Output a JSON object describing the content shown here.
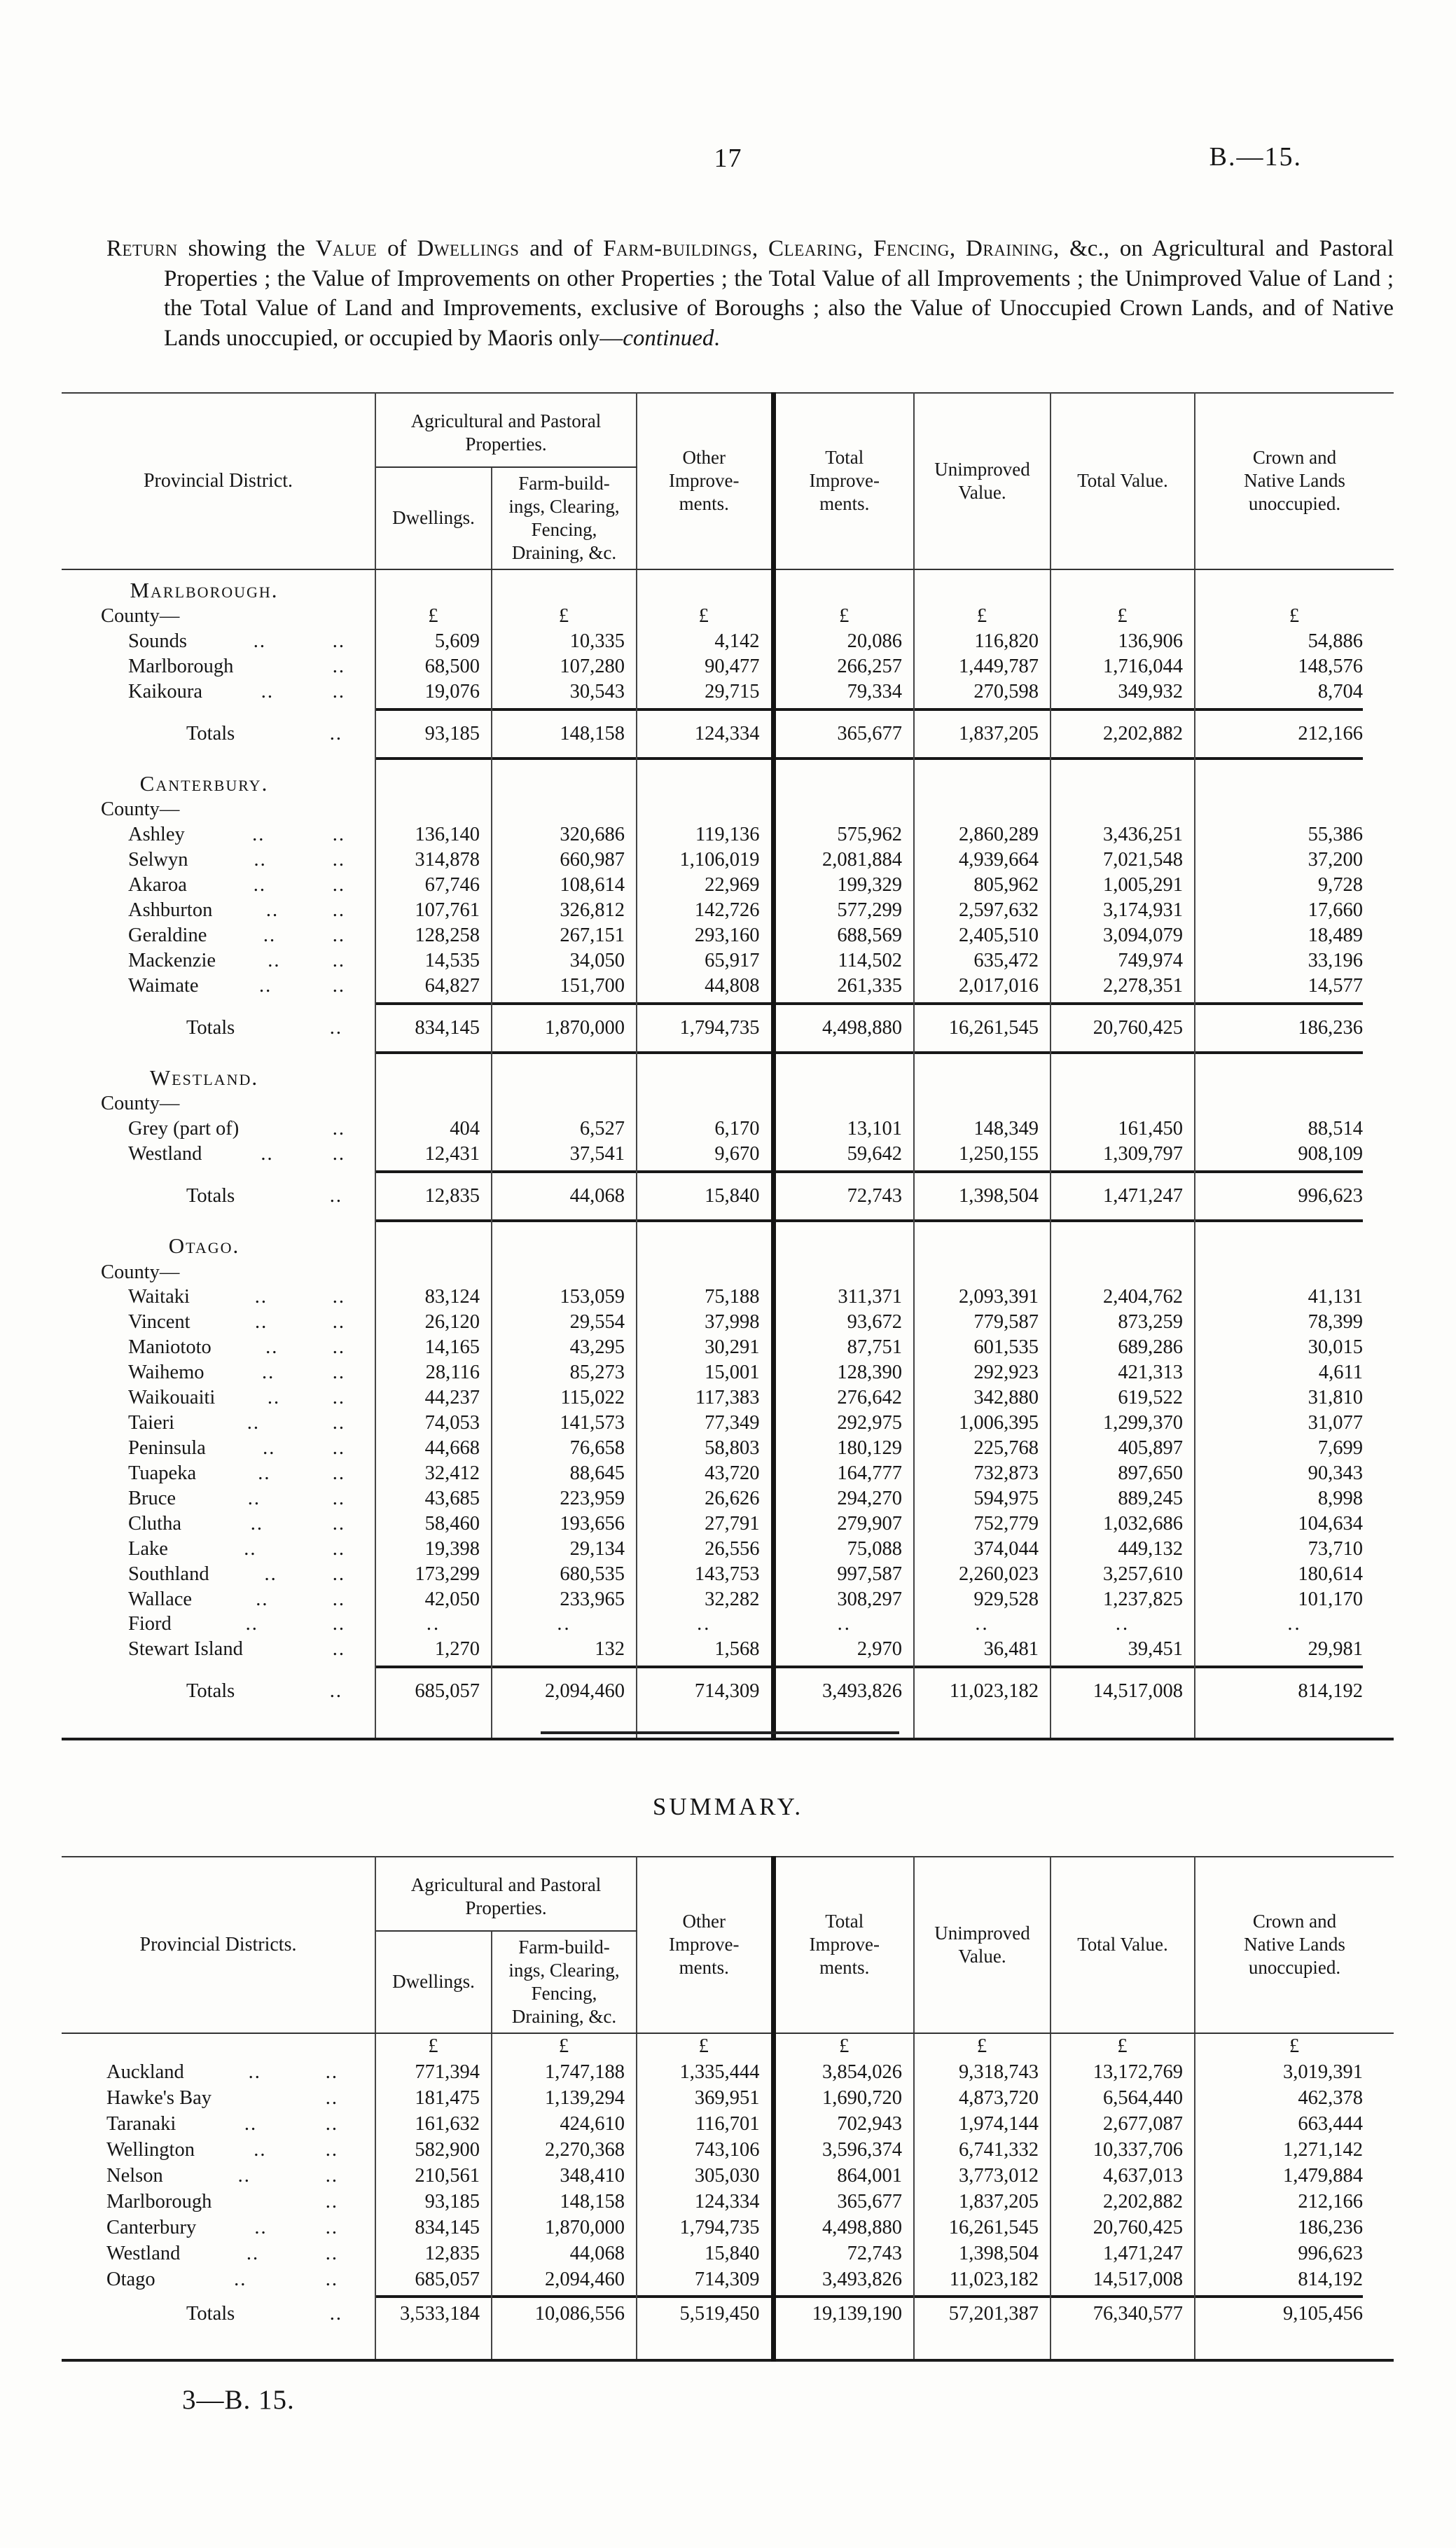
{
  "page": {
    "page_number": "17",
    "doc_code": "B.—15.",
    "summary_title": "SUMMARY.",
    "footer_signature": "3—B. 15."
  },
  "intro": {
    "segments": [
      {
        "text": "Return",
        "style": "smallcaps"
      },
      {
        "text": " showing the ",
        "style": "normal"
      },
      {
        "text": "Value",
        "style": "smallcaps"
      },
      {
        "text": " of ",
        "style": "normal"
      },
      {
        "text": "Dwellings",
        "style": "smallcaps"
      },
      {
        "text": " and of ",
        "style": "normal"
      },
      {
        "text": "Farm-buildings",
        "style": "smallcaps"
      },
      {
        "text": ", ",
        "style": "normal"
      },
      {
        "text": "Clearing",
        "style": "smallcaps"
      },
      {
        "text": ", ",
        "style": "normal"
      },
      {
        "text": "Fencing",
        "style": "smallcaps"
      },
      {
        "text": ", ",
        "style": "normal"
      },
      {
        "text": "Draining",
        "style": "smallcaps"
      },
      {
        "text": ", &c., on Agricultural and Pastoral Properties ; the Value of Improvements on other Properties ; the Total Value of all Improvements ; the Unimproved Value of Land ; the Total Value of Land and Improvements, exclusive of Boroughs ; also the Value of Unoccupied Crown Lands, and of Native Lands unoccupied, or occupied by Maoris only—",
        "style": "normal"
      },
      {
        "text": "continued",
        "style": "italic"
      },
      {
        "text": ".",
        "style": "normal"
      }
    ]
  },
  "columns": {
    "district_main": "Provincial District.",
    "district_summary": "Provincial Districts.",
    "group": "Agricultural and Pastoral\nProperties.",
    "dwellings": "Dwellings.",
    "farm_buildings": "Farm-build-\nings, Clearing,\nFencing,\nDraining, &c.",
    "other_improvements": "Other\nImprove-\nments.",
    "total_improvements": "Total\nImprove-\nments.",
    "unimproved_value": "Unimproved\nValue.",
    "total_value": "Total Value.",
    "crown_native": "Crown and\nNative Lands\nunoccupied.",
    "currency": "£",
    "empty_marker": "..",
    "county_label": "County—",
    "totals_label": "Totals"
  },
  "main_table": {
    "sections": [
      {
        "name": "Marlborough.",
        "show_currency_row": true,
        "rows": [
          {
            "label": "Sounds",
            "dots": 2,
            "values": [
              "5,609",
              "10,335",
              "4,142",
              "20,086",
              "116,820",
              "136,906",
              "54,886"
            ]
          },
          {
            "label": "Marlborough",
            "dots": 1,
            "values": [
              "68,500",
              "107,280",
              "90,477",
              "266,257",
              "1,449,787",
              "1,716,044",
              "148,576"
            ]
          },
          {
            "label": "Kaikoura",
            "dots": 2,
            "values": [
              "19,076",
              "30,543",
              "29,715",
              "79,334",
              "270,598",
              "349,932",
              "8,704"
            ]
          }
        ],
        "totals": [
          "93,185",
          "148,158",
          "124,334",
          "365,677",
          "1,837,205",
          "2,202,882",
          "212,166"
        ],
        "bottom_rule": "single"
      },
      {
        "name": "Canterbury.",
        "show_currency_row": false,
        "rows": [
          {
            "label": "Ashley",
            "dots": 2,
            "values": [
              "136,140",
              "320,686",
              "119,136",
              "575,962",
              "2,860,289",
              "3,436,251",
              "55,386"
            ]
          },
          {
            "label": "Selwyn",
            "dots": 2,
            "values": [
              "314,878",
              "660,987",
              "1,106,019",
              "2,081,884",
              "4,939,664",
              "7,021,548",
              "37,200"
            ]
          },
          {
            "label": "Akaroa",
            "dots": 2,
            "values": [
              "67,746",
              "108,614",
              "22,969",
              "199,329",
              "805,962",
              "1,005,291",
              "9,728"
            ]
          },
          {
            "label": "Ashburton",
            "dots": 2,
            "values": [
              "107,761",
              "326,812",
              "142,726",
              "577,299",
              "2,597,632",
              "3,174,931",
              "17,660"
            ]
          },
          {
            "label": "Geraldine",
            "dots": 2,
            "values": [
              "128,258",
              "267,151",
              "293,160",
              "688,569",
              "2,405,510",
              "3,094,079",
              "18,489"
            ]
          },
          {
            "label": "Mackenzie",
            "dots": 2,
            "values": [
              "14,535",
              "34,050",
              "65,917",
              "114,502",
              "635,472",
              "749,974",
              "33,196"
            ]
          },
          {
            "label": "Waimate",
            "dots": 2,
            "values": [
              "64,827",
              "151,700",
              "44,808",
              "261,335",
              "2,017,016",
              "2,278,351",
              "14,577"
            ]
          }
        ],
        "totals": [
          "834,145",
          "1,870,000",
          "1,794,735",
          "4,498,880",
          "16,261,545",
          "20,760,425",
          "186,236"
        ],
        "bottom_rule": "single"
      },
      {
        "name": "Westland.",
        "show_currency_row": false,
        "rows": [
          {
            "label": "Grey (part of)",
            "dots": 1,
            "values": [
              "404",
              "6,527",
              "6,170",
              "13,101",
              "148,349",
              "161,450",
              "88,514"
            ]
          },
          {
            "label": "Westland",
            "dots": 2,
            "values": [
              "12,431",
              "37,541",
              "9,670",
              "59,642",
              "1,250,155",
              "1,309,797",
              "908,109"
            ]
          }
        ],
        "totals": [
          "12,835",
          "44,068",
          "15,840",
          "72,743",
          "1,398,504",
          "1,471,247",
          "996,623"
        ],
        "bottom_rule": "single"
      },
      {
        "name": "Otago.",
        "show_currency_row": false,
        "rows": [
          {
            "label": "Waitaki",
            "dots": 2,
            "values": [
              "83,124",
              "153,059",
              "75,188",
              "311,371",
              "2,093,391",
              "2,404,762",
              "41,131"
            ]
          },
          {
            "label": "Vincent",
            "dots": 2,
            "values": [
              "26,120",
              "29,554",
              "37,998",
              "93,672",
              "779,587",
              "873,259",
              "78,399"
            ]
          },
          {
            "label": "Maniototo",
            "dots": 2,
            "values": [
              "14,165",
              "43,295",
              "30,291",
              "87,751",
              "601,535",
              "689,286",
              "30,015"
            ]
          },
          {
            "label": "Waihemo",
            "dots": 2,
            "values": [
              "28,116",
              "85,273",
              "15,001",
              "128,390",
              "292,923",
              "421,313",
              "4,611"
            ]
          },
          {
            "label": "Waikouaiti",
            "dots": 2,
            "values": [
              "44,237",
              "115,022",
              "117,383",
              "276,642",
              "342,880",
              "619,522",
              "31,810"
            ]
          },
          {
            "label": "Taieri",
            "dots": 2,
            "values": [
              "74,053",
              "141,573",
              "77,349",
              "292,975",
              "1,006,395",
              "1,299,370",
              "31,077"
            ]
          },
          {
            "label": "Peninsula",
            "dots": 2,
            "values": [
              "44,668",
              "76,658",
              "58,803",
              "180,129",
              "225,768",
              "405,897",
              "7,699"
            ]
          },
          {
            "label": "Tuapeka",
            "dots": 2,
            "values": [
              "32,412",
              "88,645",
              "43,720",
              "164,777",
              "732,873",
              "897,650",
              "90,343"
            ]
          },
          {
            "label": "Bruce",
            "dots": 2,
            "values": [
              "43,685",
              "223,959",
              "26,626",
              "294,270",
              "594,975",
              "889,245",
              "8,998"
            ]
          },
          {
            "label": "Clutha",
            "dots": 2,
            "values": [
              "58,460",
              "193,656",
              "27,791",
              "279,907",
              "752,779",
              "1,032,686",
              "104,634"
            ]
          },
          {
            "label": "Lake",
            "dots": 2,
            "values": [
              "19,398",
              "29,134",
              "26,556",
              "75,088",
              "374,044",
              "449,132",
              "73,710"
            ]
          },
          {
            "label": "Southland",
            "dots": 2,
            "values": [
              "173,299",
              "680,535",
              "143,753",
              "997,587",
              "2,260,023",
              "3,257,610",
              "180,614"
            ]
          },
          {
            "label": "Wallace",
            "dots": 2,
            "values": [
              "42,050",
              "233,965",
              "32,282",
              "308,297",
              "929,528",
              "1,237,825",
              "101,170"
            ]
          },
          {
            "label": "Fiord",
            "dots": 2,
            "values": [
              "..",
              "..",
              "..",
              "..",
              "..",
              "..",
              ".."
            ]
          },
          {
            "label": "Stewart Island",
            "dots": 1,
            "values": [
              "1,270",
              "132",
              "1,568",
              "2,970",
              "36,481",
              "39,451",
              "29,981"
            ]
          }
        ],
        "totals": [
          "685,057",
          "2,094,460",
          "714,309",
          "3,493,826",
          "11,023,182",
          "14,517,008",
          "814,192"
        ],
        "bottom_rule": "none"
      }
    ]
  },
  "summary_table": {
    "rows": [
      {
        "label": "Auckland",
        "dots": 2,
        "values": [
          "771,394",
          "1,747,188",
          "1,335,444",
          "3,854,026",
          "9,318,743",
          "13,172,769",
          "3,019,391"
        ]
      },
      {
        "label": "Hawke's Bay",
        "dots": 1,
        "values": [
          "181,475",
          "1,139,294",
          "369,951",
          "1,690,720",
          "4,873,720",
          "6,564,440",
          "462,378"
        ]
      },
      {
        "label": "Taranaki",
        "dots": 2,
        "values": [
          "161,632",
          "424,610",
          "116,701",
          "702,943",
          "1,974,144",
          "2,677,087",
          "663,444"
        ]
      },
      {
        "label": "Wellington",
        "dots": 2,
        "values": [
          "582,900",
          "2,270,368",
          "743,106",
          "3,596,374",
          "6,741,332",
          "10,337,706",
          "1,271,142"
        ]
      },
      {
        "label": "Nelson",
        "dots": 2,
        "values": [
          "210,561",
          "348,410",
          "305,030",
          "864,001",
          "3,773,012",
          "4,637,013",
          "1,479,884"
        ]
      },
      {
        "label": "Marlborough",
        "dots": 1,
        "values": [
          "93,185",
          "148,158",
          "124,334",
          "365,677",
          "1,837,205",
          "2,202,882",
          "212,166"
        ]
      },
      {
        "label": "Canterbury",
        "dots": 2,
        "values": [
          "834,145",
          "1,870,000",
          "1,794,735",
          "4,498,880",
          "16,261,545",
          "20,760,425",
          "186,236"
        ]
      },
      {
        "label": "Westland",
        "dots": 2,
        "values": [
          "12,835",
          "44,068",
          "15,840",
          "72,743",
          "1,398,504",
          "1,471,247",
          "996,623"
        ]
      },
      {
        "label": "Otago",
        "dots": 2,
        "values": [
          "685,057",
          "2,094,460",
          "714,309",
          "3,493,826",
          "11,023,182",
          "14,517,008",
          "814,192"
        ]
      }
    ],
    "totals": [
      "3,533,184",
      "10,086,556",
      "5,519,450",
      "19,139,190",
      "57,201,387",
      "76,340,577",
      "9,105,456"
    ]
  }
}
